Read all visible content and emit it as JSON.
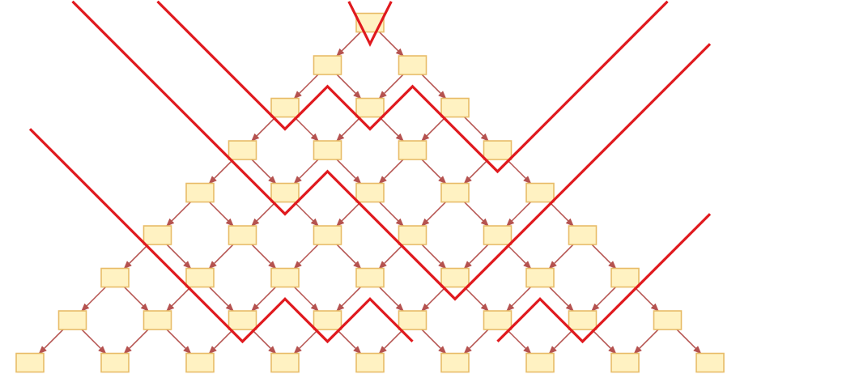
{
  "diagram": {
    "rows": 9,
    "colors": {
      "node_fill": "#fff2c2",
      "node_stroke": "#e8bc68",
      "edge": "#b5524f",
      "path": "#e0191e",
      "background": "#ffffff"
    },
    "paths": [
      {
        "id": "path-1",
        "points": [
          [
            -0.5,
            -0.5
          ],
          [
            0,
            0.5
          ],
          [
            0.5,
            -0.5
          ]
        ]
      },
      {
        "id": "path-2",
        "points": [
          [
            -5,
            -0.5
          ],
          [
            -2,
            2.5
          ],
          [
            -1,
            1.5
          ],
          [
            0,
            2.5
          ],
          [
            1,
            1.5
          ],
          [
            3,
            3.5
          ],
          [
            7,
            -0.5
          ]
        ]
      },
      {
        "id": "path-3",
        "points": [
          [
            -7,
            -0.5
          ],
          [
            -2,
            4.5
          ],
          [
            -1,
            3.5
          ],
          [
            2,
            6.5
          ],
          [
            8,
            0.5
          ]
        ]
      },
      {
        "id": "path-4",
        "points": [
          [
            -8,
            2.5
          ],
          [
            -3,
            7.5
          ],
          [
            -2,
            6.5
          ],
          [
            -1,
            7.5
          ],
          [
            0,
            6.5
          ],
          [
            1,
            7.5
          ]
        ]
      },
      {
        "id": "path-5",
        "points": [
          [
            3,
            7.5
          ],
          [
            4,
            6.5
          ],
          [
            5,
            7.5
          ],
          [
            8,
            4.5
          ]
        ]
      }
    ]
  }
}
